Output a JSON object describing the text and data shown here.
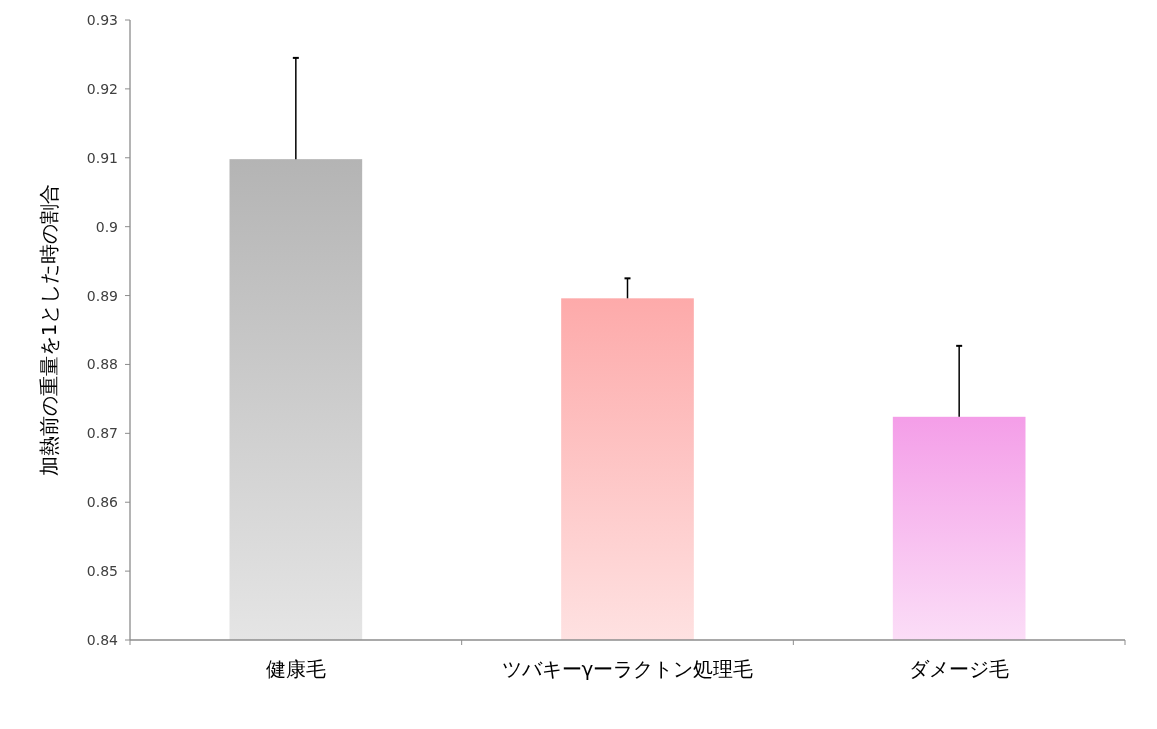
{
  "chart_data": {
    "type": "bar",
    "ylabel": "加熱前の重量を1とした時の割合",
    "categories": [
      "健康毛",
      "ツバキーγーラクトン処理毛",
      "ダメージ毛"
    ],
    "values": [
      0.9098,
      0.8896,
      0.8724
    ],
    "errors": [
      [
        0.9098,
        0.9245
      ],
      [
        0.8896,
        0.8925
      ],
      [
        0.8724,
        0.8827
      ]
    ],
    "colors": [
      "#b4b4b4",
      "#fdaaaa",
      "#f49ee8"
    ],
    "ylim": [
      0.84,
      0.93
    ],
    "yticks": [
      {
        "value": 0.84,
        "label": "0.84"
      },
      {
        "value": 0.85,
        "label": "0.85"
      },
      {
        "value": 0.86,
        "label": "0.86"
      },
      {
        "value": 0.87,
        "label": "0.87"
      },
      {
        "value": 0.88,
        "label": "0.88"
      },
      {
        "value": 0.89,
        "label": "0.89"
      },
      {
        "value": 0.9,
        "label": "0.9"
      },
      {
        "value": 0.91,
        "label": "0.91"
      },
      {
        "value": 0.92,
        "label": "0.92"
      },
      {
        "value": 0.93,
        "label": "0.93"
      }
    ],
    "grid": false
  }
}
